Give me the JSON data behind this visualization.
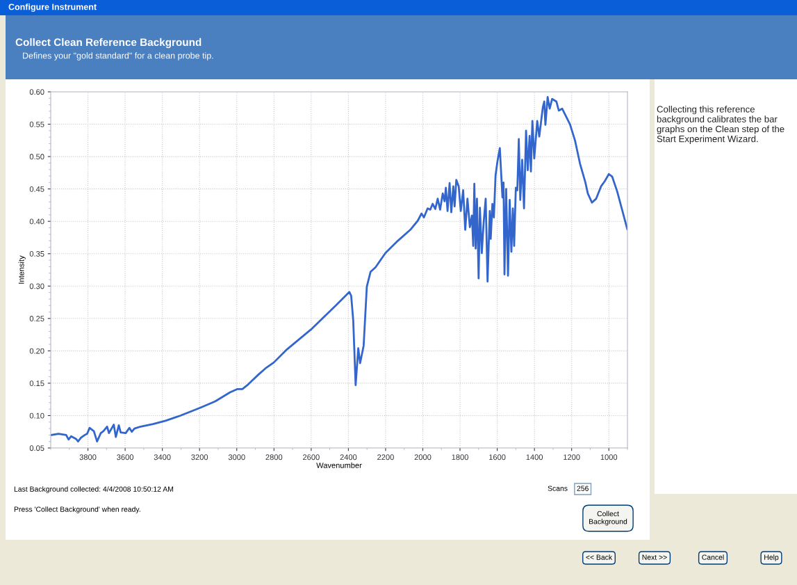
{
  "chart_data": {
    "type": "line",
    "title": "Collect Clean Reference Background",
    "subtitle": "Defines your \"gold standard\" for a clean probe tip.",
    "xlabel": "Wavenumber",
    "ylabel": "Intensity",
    "xlim": [
      4000,
      900
    ],
    "xticks": [
      3800,
      3600,
      3400,
      3200,
      3000,
      2800,
      2600,
      2400,
      2200,
      2000,
      1800,
      1600,
      1400,
      1200,
      1000
    ],
    "ylim": [
      0.05,
      0.6
    ],
    "yticks": [
      {
        "value": 0.05,
        "label": "0.05"
      },
      {
        "value": 0.1,
        "label": "0.10"
      },
      {
        "value": 0.15,
        "label": "0.15"
      },
      {
        "value": 0.2,
        "label": "0.20"
      },
      {
        "value": 0.25,
        "label": "0.25"
      },
      {
        "value": 0.3,
        "label": "0.30"
      },
      {
        "value": 0.35,
        "label": "0.35"
      },
      {
        "value": 0.4,
        "label": "0.40"
      },
      {
        "value": 0.45,
        "label": "0.45"
      },
      {
        "value": 0.5,
        "label": "0.50"
      },
      {
        "value": 0.55,
        "label": "0.55"
      },
      {
        "value": 0.6,
        "label": "0.60"
      }
    ],
    "grid": true,
    "legend": false,
    "marker": "none",
    "line_style": "solid",
    "series": [
      {
        "color": "#3366cc",
        "x": [
          3998,
          3958,
          3917,
          3904,
          3890,
          3864,
          3853,
          3837,
          3817,
          3804,
          3791,
          3768,
          3751,
          3731,
          3717,
          3697,
          3687,
          3661,
          3650,
          3634,
          3624,
          3597,
          3577,
          3564,
          3550,
          3517,
          3450,
          3383,
          3303,
          3197,
          3116,
          3036,
          2996,
          2970,
          2943,
          2921,
          2881,
          2841,
          2801,
          2735,
          2601,
          2468,
          2395,
          2385,
          2374,
          2361,
          2347,
          2337,
          2318,
          2301,
          2281,
          2254,
          2201,
          2134,
          2067,
          2027,
          2007,
          1994,
          1974,
          1960,
          1947,
          1933,
          1920,
          1907,
          1893,
          1883,
          1876,
          1867,
          1856,
          1847,
          1836,
          1829,
          1820,
          1807,
          1796,
          1783,
          1772,
          1760,
          1747,
          1736,
          1729,
          1723,
          1716,
          1709,
          1700,
          1693,
          1683,
          1673,
          1662,
          1652,
          1640,
          1635,
          1626,
          1618,
          1609,
          1599,
          1586,
          1572,
          1566,
          1561,
          1552,
          1542,
          1533,
          1524,
          1516,
          1509,
          1500,
          1492,
          1484,
          1476,
          1466,
          1456,
          1445,
          1436,
          1426,
          1419,
          1411,
          1401,
          1385,
          1374,
          1366,
          1355,
          1347,
          1341,
          1329,
          1318,
          1305,
          1282,
          1269,
          1251,
          1209,
          1182,
          1155,
          1126,
          1113,
          1091,
          1068,
          1042,
          1022,
          1000,
          982,
          955,
          901
        ],
        "values": [
          0.07,
          0.072,
          0.07,
          0.063,
          0.068,
          0.064,
          0.06,
          0.066,
          0.07,
          0.072,
          0.081,
          0.076,
          0.06,
          0.073,
          0.076,
          0.083,
          0.073,
          0.086,
          0.067,
          0.085,
          0.074,
          0.073,
          0.081,
          0.075,
          0.08,
          0.083,
          0.087,
          0.092,
          0.1,
          0.112,
          0.122,
          0.136,
          0.141,
          0.141,
          0.147,
          0.153,
          0.164,
          0.174,
          0.182,
          0.201,
          0.233,
          0.27,
          0.291,
          0.285,
          0.247,
          0.147,
          0.204,
          0.181,
          0.208,
          0.299,
          0.322,
          0.329,
          0.351,
          0.37,
          0.387,
          0.401,
          0.412,
          0.406,
          0.42,
          0.418,
          0.427,
          0.419,
          0.435,
          0.418,
          0.443,
          0.431,
          0.452,
          0.416,
          0.459,
          0.414,
          0.454,
          0.423,
          0.464,
          0.454,
          0.416,
          0.448,
          0.387,
          0.435,
          0.391,
          0.409,
          0.362,
          0.458,
          0.358,
          0.435,
          0.312,
          0.421,
          0.351,
          0.398,
          0.435,
          0.307,
          0.416,
          0.373,
          0.427,
          0.406,
          0.471,
          0.492,
          0.513,
          0.437,
          0.46,
          0.318,
          0.45,
          0.316,
          0.433,
          0.353,
          0.42,
          0.362,
          0.452,
          0.448,
          0.527,
          0.433,
          0.495,
          0.42,
          0.54,
          0.479,
          0.532,
          0.477,
          0.555,
          0.497,
          0.555,
          0.531,
          0.55,
          0.576,
          0.585,
          0.549,
          0.592,
          0.574,
          0.589,
          0.585,
          0.571,
          0.574,
          0.55,
          0.525,
          0.489,
          0.46,
          0.443,
          0.429,
          0.435,
          0.454,
          0.462,
          0.473,
          0.469,
          0.446,
          0.388
        ]
      }
    ],
    "annotations": [
      "Configure Instrument",
      "Collecting this reference background calibrates the bar graphs on the Clean step of the Start Experiment Wizard.",
      "Last Background collected: 4/4/2008 10:50:12 AM",
      "Press 'Collect Background' when ready.",
      "Scans",
      "256",
      "Collect\nBackground",
      "<< Back",
      "Next >>",
      "Cancel",
      "Help"
    ]
  }
}
